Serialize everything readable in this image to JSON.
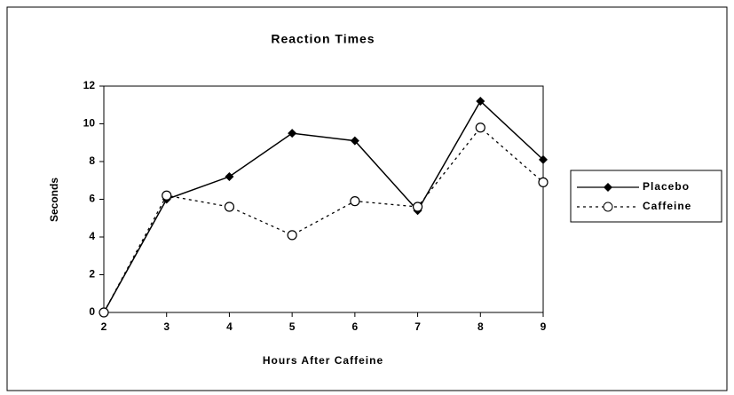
{
  "chart_data": {
    "type": "line",
    "title": "Reaction Times",
    "x_label": "Hours After Caffeine",
    "y_label": "Seconds",
    "x": [
      2,
      3,
      4,
      5,
      6,
      7,
      8,
      9
    ],
    "series": [
      {
        "name": "Placebo",
        "color": "#000000",
        "values": [
          0,
          6,
          7.2,
          9.5,
          9.1,
          5.4,
          11.2,
          8.1
        ]
      },
      {
        "name": "Caffeine",
        "color": "#000000",
        "values": [
          0,
          6.2,
          5.6,
          4.1,
          5.9,
          5.6,
          9.8,
          6.9
        ]
      }
    ],
    "xlim": [
      2,
      9
    ],
    "xticks": [
      2,
      3,
      4,
      5,
      6,
      7,
      8,
      9
    ],
    "ylim": [
      0,
      12
    ],
    "yticks": [
      0,
      2,
      4,
      6,
      8,
      10,
      12
    ],
    "legend": "right"
  }
}
